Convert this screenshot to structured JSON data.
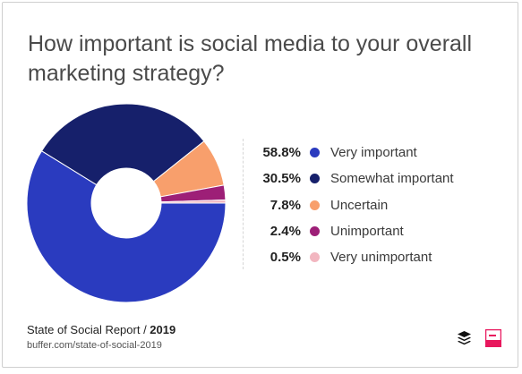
{
  "title": "How important is social media to your overall marketing strategy?",
  "chart_data": {
    "type": "pie",
    "title": "How important is social media to your overall marketing strategy?",
    "donut": true,
    "slices": [
      {
        "label": "Very important",
        "value": 58.8,
        "pct_label": "58.8%",
        "color": "#2a3bbf"
      },
      {
        "label": "Somewhat important",
        "value": 30.5,
        "pct_label": "30.5%",
        "color": "#16206b"
      },
      {
        "label": "Uncertain",
        "value": 7.8,
        "pct_label": "7.8%",
        "color": "#f89f6c"
      },
      {
        "label": "Unimportant",
        "value": 2.4,
        "pct_label": "2.4%",
        "color": "#9d1f77"
      },
      {
        "label": "Very unimportant",
        "value": 0.5,
        "pct_label": "0.5%",
        "color": "#f2b6c0"
      }
    ],
    "legend_position": "right"
  },
  "footer": {
    "report": "State of Social Report / ",
    "year": "2019",
    "url": "buffer.com/state-of-social-2019"
  },
  "logos": {
    "buffer": "layers-logo-icon",
    "report": "report-logo-icon",
    "report_color": "#e8175d"
  }
}
